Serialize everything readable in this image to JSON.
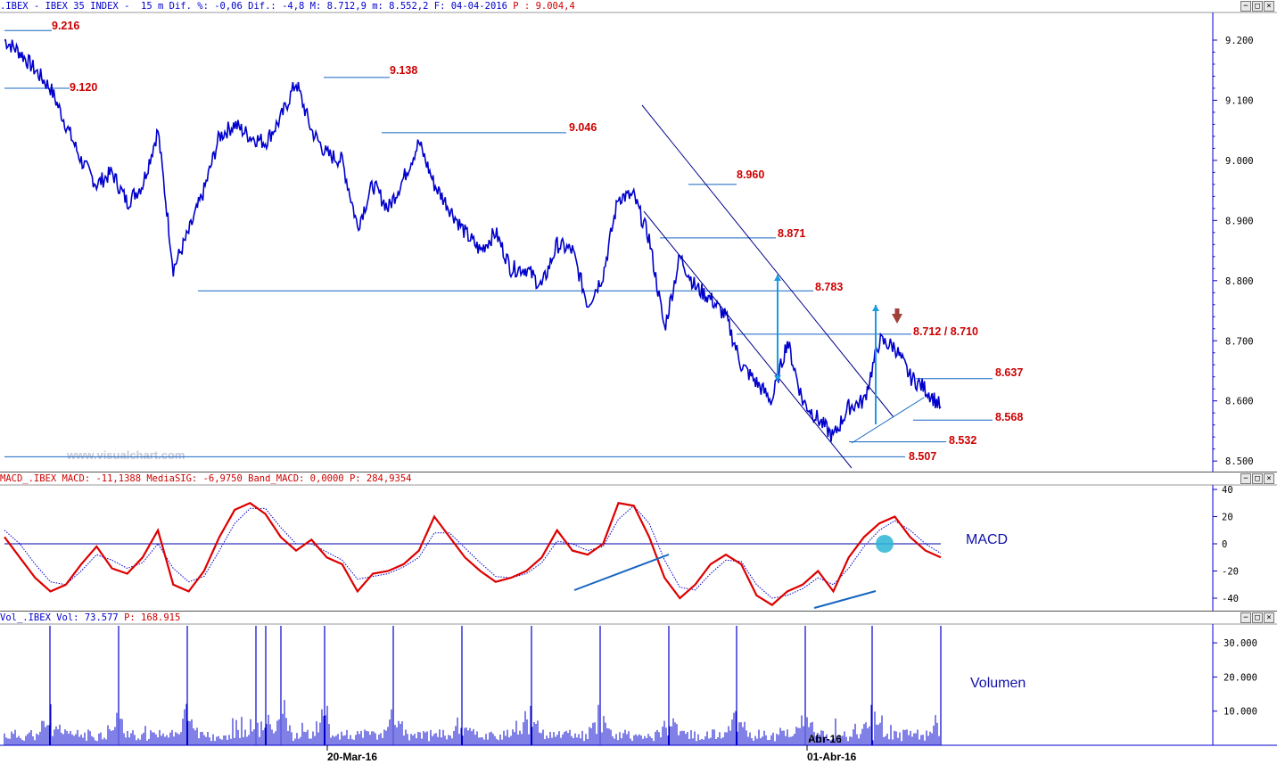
{
  "price_pane": {
    "header": ".IBEX - IBEX 35 INDEX -  15 m Dif. %: -0,06 Dif.: -4,8 M: 8.712,9 m: 8.552,2 F: 04-04-2016",
    "header_p": "P : 9.004,4",
    "watermark": "www.visualchart.com"
  },
  "macd_pane": {
    "header": "MACD_.IBEX MACD: -11,1388 MediaSIG: -6,9750 Band_MACD: 0,0000",
    "header_p": "P: 284,9354",
    "label": "MACD"
  },
  "volume_pane": {
    "header": "Vol_.IBEX Vol: 73.577",
    "header_p": "P: 168.915",
    "label": "Volumen"
  },
  "x_axis": {
    "labels": [
      "20-Mar-16",
      "01-Abr-16"
    ],
    "overlay_label": "Abr-16"
  },
  "colors": {
    "price": "#0000cc",
    "macd": "#dd0000",
    "signal": "#0000cc",
    "level_text": "#cc0000",
    "arrow_cyan": "#1e9be0",
    "arrow_down": "#a0403a",
    "trend_lines": "#1565c0"
  },
  "chart_data": [
    {
      "type": "line",
      "title": "",
      "series": [
        {
          "values": [
            9200,
            9180,
            9150,
            9120,
            9060,
            9000,
            8960,
            8980,
            8930,
            8960,
            9050,
            8820,
            8880,
            8950,
            9040,
            9060,
            9040,
            9030,
            9070,
            9130,
            9050,
            9010,
            9000,
            8890,
            8960,
            8920,
            8970,
            9030,
            8960,
            8920,
            8880,
            8850,
            8880,
            8820,
            8820,
            8790,
            8860,
            8850,
            8760,
            8810,
            8940,
            8940,
            8870,
            8720,
            8840,
            8790,
            8770,
            8740,
            8660,
            8630,
            8600,
            8700,
            8600,
            8570,
            8540,
            8590,
            8600,
            8700,
            8690,
            8640,
            8620,
            8590
          ]
        }
      ],
      "levels": [
        {
          "label": "9.216",
          "value": 9216
        },
        {
          "label": "9.120",
          "value": 9120
        },
        {
          "label": "9.138",
          "value": 9138
        },
        {
          "label": "9.046",
          "value": 9046
        },
        {
          "label": "8.960",
          "value": 8960
        },
        {
          "label": "8.871",
          "value": 8871
        },
        {
          "label": "8.783",
          "value": 8783
        },
        {
          "label": "8.712 / 8.710",
          "value": 8711
        },
        {
          "label": "8.637",
          "value": 8637
        },
        {
          "label": "8.568",
          "value": 8568
        },
        {
          "label": "8.532",
          "value": 8532
        },
        {
          "label": "8.507",
          "value": 8507
        }
      ],
      "y_ticks": [
        "9.200",
        "9.100",
        "9.000",
        "8.900",
        "8.800",
        "8.700",
        "8.600",
        "8.500"
      ],
      "ylim": [
        8480,
        9250
      ]
    },
    {
      "type": "line",
      "title": "",
      "series": [
        {
          "values": [
            5,
            -10,
            -25,
            -35,
            -30,
            -15,
            -2,
            -18,
            -22,
            -10,
            10,
            -30,
            -35,
            -20,
            5,
            25,
            30,
            22,
            5,
            -5,
            3,
            -10,
            -15,
            -35,
            -22,
            -20,
            -15,
            -5,
            20,
            5,
            -10,
            -20,
            -28,
            -25,
            -20,
            -10,
            10,
            -5,
            -8,
            0,
            30,
            28,
            5,
            -25,
            -40,
            -30,
            -15,
            -8,
            -15,
            -38,
            -45,
            -35,
            -30,
            -20,
            -35,
            -10,
            5,
            15,
            20,
            5,
            -5,
            -10
          ]
        },
        {
          "values": [
            10,
            0,
            -15,
            -28,
            -30,
            -20,
            -8,
            -12,
            -18,
            -14,
            0,
            -18,
            -28,
            -24,
            -5,
            15,
            26,
            26,
            12,
            0,
            0,
            -6,
            -12,
            -26,
            -24,
            -22,
            -17,
            -10,
            8,
            8,
            -3,
            -14,
            -24,
            -25,
            -22,
            -14,
            2,
            0,
            -5,
            -2,
            18,
            28,
            15,
            -12,
            -32,
            -34,
            -22,
            -12,
            -13,
            -30,
            -40,
            -38,
            -33,
            -25,
            -30,
            -18,
            -2,
            10,
            17,
            10,
            0,
            -7
          ]
        }
      ],
      "y_ticks": [
        "40",
        "20",
        "0",
        "-20",
        "-40"
      ],
      "ylim": [
        -50,
        42
      ]
    },
    {
      "type": "bar",
      "title": "",
      "spikes": [
        35000,
        35000,
        35000,
        35000,
        35000,
        35000,
        35000,
        35000,
        35000,
        35000,
        35000,
        35000,
        35000,
        35000,
        35000,
        35000
      ],
      "y_ticks": [
        "30.000",
        "20.000",
        "10.000"
      ],
      "ylim": [
        0,
        35000
      ]
    }
  ]
}
